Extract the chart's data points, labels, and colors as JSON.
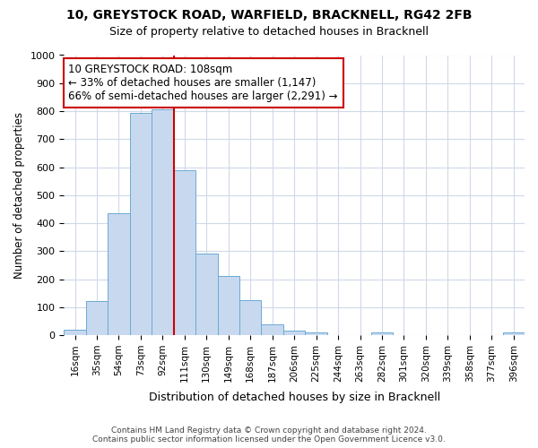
{
  "title_line1": "10, GREYSTOCK ROAD, WARFIELD, BRACKNELL, RG42 2FB",
  "title_line2": "Size of property relative to detached houses in Bracknell",
  "xlabel": "Distribution of detached houses by size in Bracknell",
  "ylabel": "Number of detached properties",
  "bar_labels": [
    "16sqm",
    "35sqm",
    "54sqm",
    "73sqm",
    "92sqm",
    "111sqm",
    "130sqm",
    "149sqm",
    "168sqm",
    "187sqm",
    "206sqm",
    "225sqm",
    "244sqm",
    "263sqm",
    "282sqm",
    "301sqm",
    "320sqm",
    "339sqm",
    "358sqm",
    "377sqm",
    "396sqm"
  ],
  "bar_values": [
    18,
    122,
    435,
    795,
    808,
    590,
    292,
    212,
    125,
    40,
    15,
    10,
    0,
    0,
    10,
    0,
    0,
    0,
    0,
    0,
    10
  ],
  "bar_color": "#c8d9ef",
  "bar_edge_color": "#6aaad4",
  "annotation_text": "10 GREYSTOCK ROAD: 108sqm\n← 33% of detached houses are smaller (1,147)\n66% of semi-detached houses are larger (2,291) →",
  "annotation_box_color": "#ffffff",
  "annotation_box_edge": "#cc0000",
  "vertical_line_color": "#cc0000",
  "footer_line1": "Contains HM Land Registry data © Crown copyright and database right 2024.",
  "footer_line2": "Contains public sector information licensed under the Open Government Licence v3.0.",
  "ylim": [
    0,
    1000
  ],
  "bg_color": "#ffffff",
  "plot_bg_color": "#ffffff",
  "grid_color": "#d0d8e8"
}
